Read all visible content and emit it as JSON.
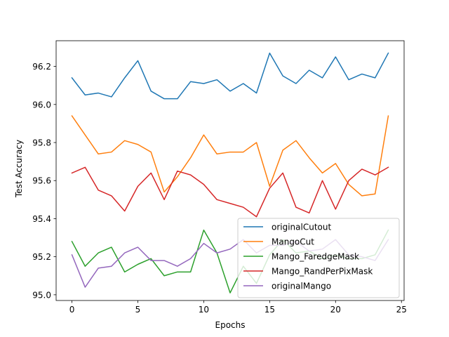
{
  "chart_data": {
    "type": "line",
    "title": "",
    "xlabel": "Epochs",
    "ylabel": "Test Accuracy",
    "xlim": [
      -1.2,
      25.2
    ],
    "ylim": [
      94.97,
      96.335
    ],
    "xticks": [
      0,
      5,
      10,
      15,
      20,
      25
    ],
    "yticks": [
      95.0,
      95.2,
      95.4,
      95.6,
      95.8,
      96.0,
      96.2
    ],
    "grid": false,
    "legend_position": "lower-right",
    "x": [
      0,
      1,
      2,
      3,
      4,
      5,
      6,
      7,
      8,
      9,
      10,
      11,
      12,
      13,
      14,
      15,
      16,
      17,
      18,
      19,
      20,
      21,
      22,
      23,
      24
    ],
    "series": [
      {
        "name": "originalCutout",
        "color": "#1f77b4",
        "values": [
          96.14,
          96.05,
          96.06,
          96.04,
          96.14,
          96.23,
          96.07,
          96.03,
          96.03,
          96.12,
          96.11,
          96.13,
          96.07,
          96.11,
          96.06,
          96.27,
          96.15,
          96.11,
          96.18,
          96.14,
          96.25,
          96.13,
          96.16,
          96.14,
          96.27
        ]
      },
      {
        "name": "MangoCut",
        "color": "#ff7f0e",
        "values": [
          95.94,
          95.84,
          95.74,
          95.75,
          95.81,
          95.79,
          95.75,
          95.54,
          95.62,
          95.72,
          95.84,
          95.74,
          95.75,
          95.75,
          95.8,
          95.57,
          95.76,
          95.81,
          95.72,
          95.64,
          95.69,
          95.58,
          95.52,
          95.53,
          95.94
        ]
      },
      {
        "name": "Mango_FaredgeMask",
        "color": "#2ca02c",
        "values": [
          95.28,
          95.15,
          95.22,
          95.25,
          95.12,
          95.16,
          95.19,
          95.1,
          95.12,
          95.12,
          95.34,
          95.22,
          95.01,
          95.15,
          95.06,
          95.21,
          95.29,
          95.22,
          95.23,
          95.19,
          95.21,
          95.19,
          95.19,
          95.21,
          95.34
        ]
      },
      {
        "name": "Mango_RandPerPixMask",
        "color": "#d62728",
        "values": [
          95.64,
          95.67,
          95.55,
          95.52,
          95.44,
          95.57,
          95.64,
          95.5,
          95.65,
          95.63,
          95.58,
          95.5,
          95.48,
          95.46,
          95.41,
          95.56,
          95.64,
          95.46,
          95.43,
          95.6,
          95.45,
          95.6,
          95.66,
          95.63,
          95.67
        ]
      },
      {
        "name": "originalMango",
        "color": "#9467bd",
        "values": [
          95.21,
          95.04,
          95.14,
          95.15,
          95.22,
          95.25,
          95.18,
          95.18,
          95.15,
          95.19,
          95.27,
          95.22,
          95.24,
          95.29,
          95.22,
          95.26,
          95.26,
          95.28,
          95.23,
          95.24,
          95.29,
          95.21,
          95.2,
          95.18,
          95.29
        ]
      }
    ]
  }
}
